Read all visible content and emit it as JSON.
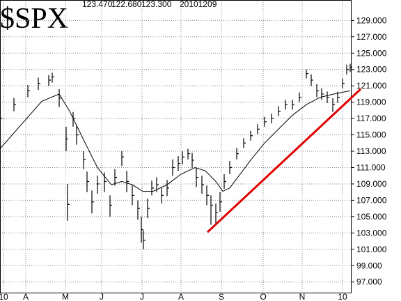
{
  "chart_data": {
    "type": "ohlc",
    "title": "$SPX",
    "quote": [
      "123.470",
      "122.680",
      "123.300"
    ],
    "date": "20101209",
    "xlim": [
      0,
      505
    ],
    "ylim": [
      95.7,
      131.5
    ],
    "xticks": [
      {
        "value": 5,
        "label": "10"
      },
      {
        "value": 37,
        "label": "A"
      },
      {
        "value": 94,
        "label": "M"
      },
      {
        "value": 146,
        "label": "J"
      },
      {
        "value": 204,
        "label": "J"
      },
      {
        "value": 260,
        "label": "A"
      },
      {
        "value": 318,
        "label": "S"
      },
      {
        "value": 378,
        "label": "O"
      },
      {
        "value": 434,
        "label": "N"
      },
      {
        "value": 492,
        "label": "10"
      }
    ],
    "yticks": [
      {
        "value": 129,
        "label": "129.000"
      },
      {
        "value": 127,
        "label": "127.000"
      },
      {
        "value": 125,
        "label": "125.000"
      },
      {
        "value": 123,
        "label": "123.000"
      },
      {
        "value": 121,
        "label": "121.000"
      },
      {
        "value": 119,
        "label": "119.000"
      },
      {
        "value": 117,
        "label": "117.000"
      },
      {
        "value": 115,
        "label": "115.000"
      },
      {
        "value": 113,
        "label": "113.000"
      },
      {
        "value": 111,
        "label": "111.000"
      },
      {
        "value": 109,
        "label": "109.000"
      },
      {
        "value": 107,
        "label": "107.000"
      },
      {
        "value": 105,
        "label": "105.000"
      },
      {
        "value": 103,
        "label": "103.000"
      },
      {
        "value": 101,
        "label": "101.000"
      },
      {
        "value": 99,
        "label": "99.000"
      },
      {
        "value": 97,
        "label": "97.000"
      }
    ],
    "grid": true,
    "color": "#000000",
    "bars": {
      "x": [
        0,
        20,
        40,
        55,
        70,
        75,
        85,
        95,
        97,
        105,
        110,
        120,
        125,
        132,
        140,
        150,
        158,
        165,
        175,
        182,
        190,
        198,
        203,
        206,
        212,
        218,
        225,
        232,
        240,
        248,
        256,
        262,
        270,
        276,
        282,
        290,
        297,
        303,
        310,
        316,
        322,
        330,
        340,
        350,
        360,
        370,
        380,
        390,
        400,
        410,
        420,
        430,
        440,
        447,
        455,
        462,
        470,
        478,
        485,
        492,
        498,
        503
      ],
      "high": [
        117.8,
        119.5,
        121.1,
        122.0,
        122.3,
        122.6,
        120.6,
        116.0,
        109.0,
        117.8,
        116.2,
        113.0,
        110.5,
        108.2,
        110.0,
        110.4,
        107.6,
        110.8,
        113.0,
        110.6,
        108.8,
        107.0,
        105.0,
        103.3,
        107.2,
        109.4,
        109.8,
        108.6,
        109.5,
        112.0,
        112.4,
        113.0,
        113.3,
        112.8,
        111.0,
        110.0,
        108.8,
        107.6,
        106.6,
        108.0,
        110.2,
        111.8,
        113.4,
        114.6,
        115.5,
        116.3,
        117.2,
        117.6,
        118.5,
        119.3,
        119.3,
        120.2,
        123.0,
        122.4,
        121.2,
        120.7,
        120.3,
        119.5,
        120.3,
        121.9,
        123.6,
        123.7
      ],
      "low": [
        116.2,
        117.9,
        119.6,
        120.5,
        121.0,
        121.4,
        118.4,
        113.0,
        104.5,
        116.0,
        113.8,
        110.8,
        108.0,
        105.4,
        107.8,
        108.0,
        105.0,
        108.8,
        111.2,
        108.0,
        106.4,
        104.6,
        101.8,
        101.0,
        104.8,
        107.6,
        108.0,
        106.6,
        107.5,
        110.0,
        110.6,
        111.4,
        112.0,
        111.0,
        108.6,
        107.8,
        106.4,
        104.0,
        104.0,
        105.6,
        108.4,
        110.2,
        112.0,
        113.4,
        114.3,
        115.1,
        116.0,
        116.4,
        117.3,
        118.1,
        118.1,
        119.0,
        121.9,
        121.0,
        119.6,
        119.3,
        118.9,
        117.8,
        118.9,
        120.7,
        122.4,
        122.7
      ],
      "close": [
        117,
        118.7,
        120.4,
        121.3,
        121.7,
        122.1,
        119.5,
        114.5,
        106.5,
        117,
        115,
        112,
        109.3,
        106.8,
        109,
        109.3,
        106.4,
        109.8,
        112.3,
        109.3,
        107.6,
        106,
        103.4,
        102.1,
        106,
        108.5,
        108.9,
        107.6,
        108.5,
        111,
        111.5,
        112.3,
        112.7,
        111.9,
        109.8,
        108.9,
        107.6,
        106.4,
        105.5,
        106.8,
        109.3,
        111,
        112.7,
        114,
        114.9,
        115.7,
        116.6,
        117,
        117.9,
        118.7,
        118.7,
        119.6,
        122.5,
        121.7,
        120.4,
        120,
        119.6,
        118.7,
        119.6,
        121.3,
        123,
        123.3
      ]
    },
    "moving_average": {
      "x": [
        0,
        60,
        85,
        100,
        120,
        140,
        160,
        175,
        190,
        205,
        220,
        240,
        260,
        280,
        295,
        310,
        320,
        330,
        345,
        360,
        380,
        400,
        420,
        440,
        460,
        480,
        503
      ],
      "values": [
        113.3,
        119.1,
        120,
        117.9,
        114.4,
        111,
        108.9,
        109.3,
        108.9,
        108.1,
        108.1,
        108.9,
        110.2,
        111,
        110.6,
        109.3,
        108.1,
        108.5,
        110.2,
        111.9,
        114,
        115.7,
        117.4,
        118.7,
        119.6,
        120,
        120.4
      ]
    },
    "trendline": {
      "x": [
        298,
        518
      ],
      "y": [
        103.1,
        120.6
      ],
      "color": "#e00000"
    }
  }
}
